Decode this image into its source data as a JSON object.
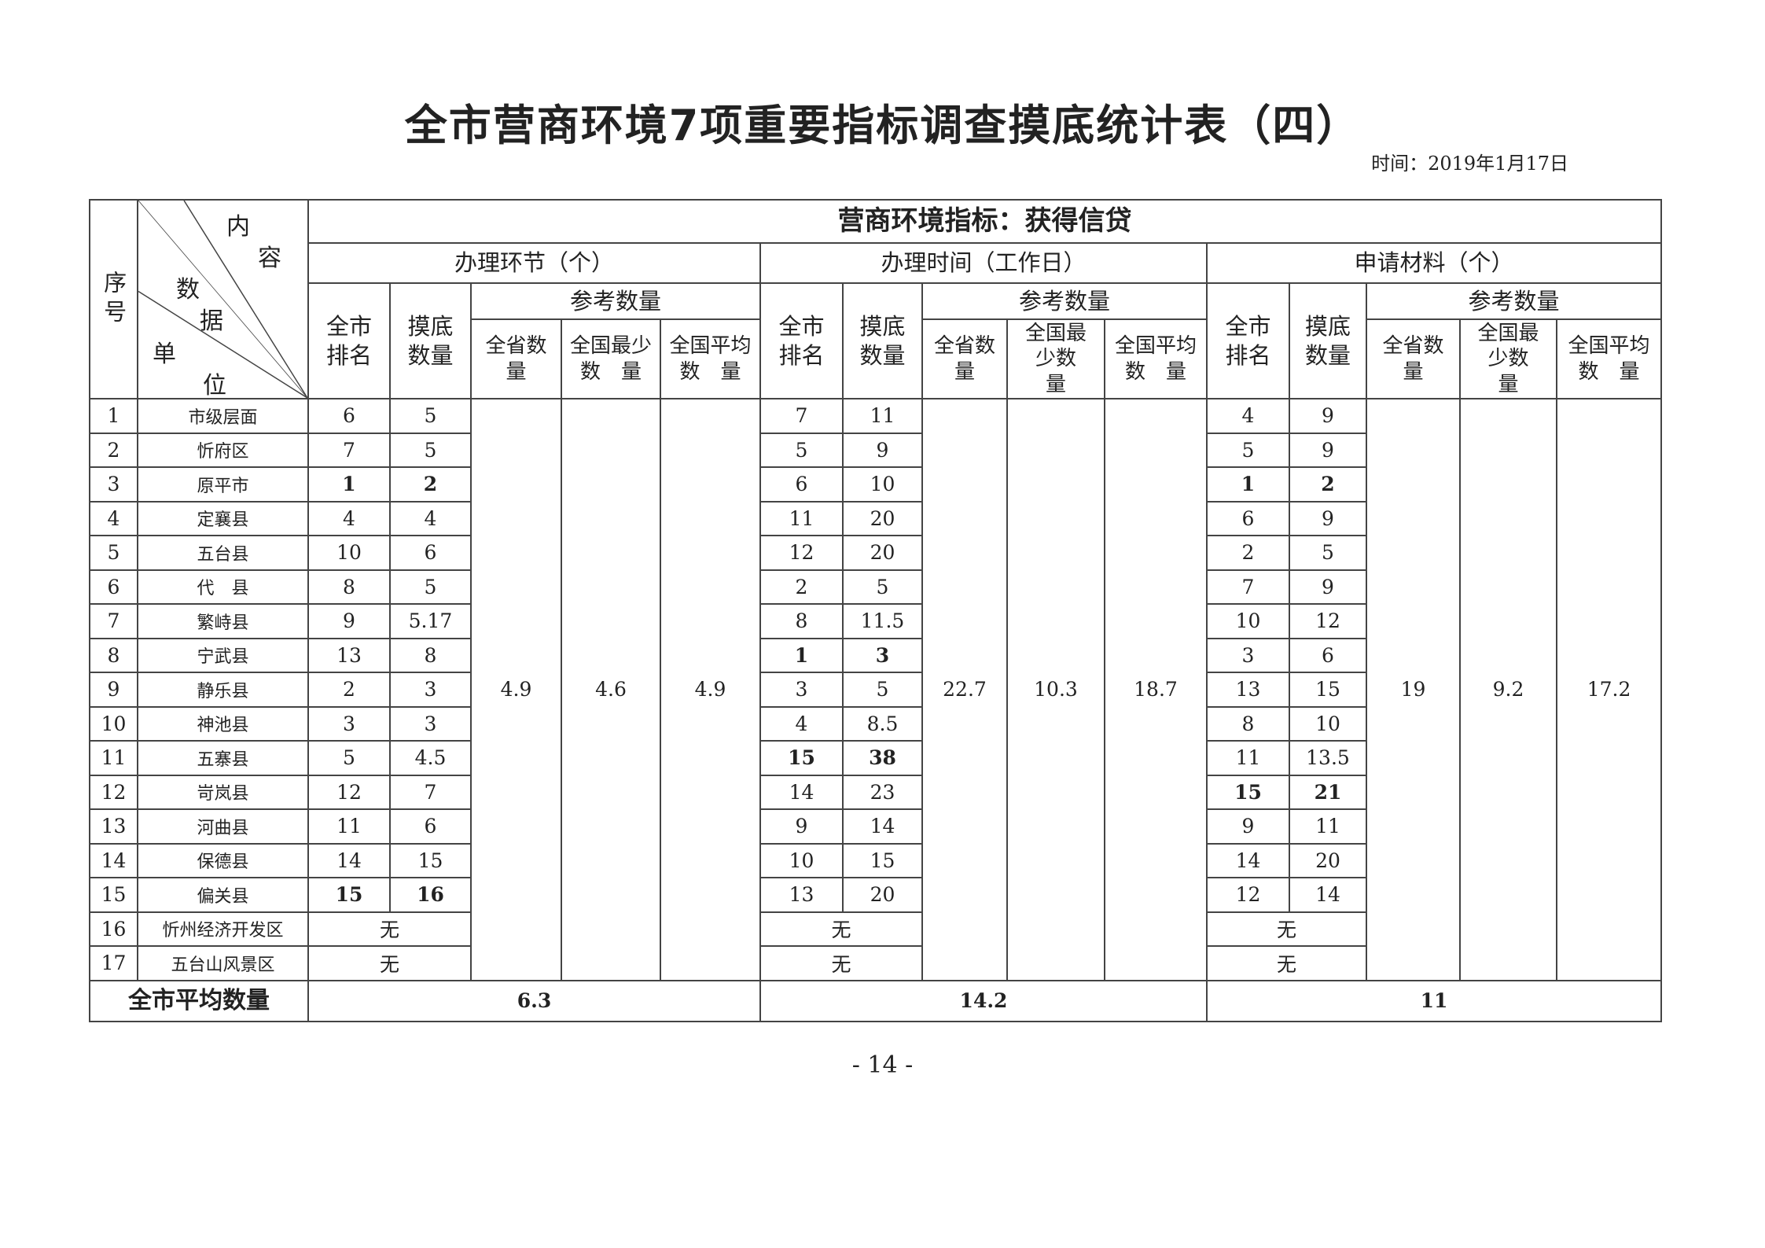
{
  "title": "全市营商环境7项重要指标调查摸底统计表（四）",
  "date": "时间：2019年1月17日",
  "header": {
    "seq": "序号",
    "diag_content": [
      "内",
      "容"
    ],
    "diag_data": [
      "数",
      "据"
    ],
    "diag_unit": [
      "单",
      "位"
    ],
    "indicator": "营商环境指标：获得信贷",
    "sections": [
      "办理环节（个）",
      "办理时间（工作日）",
      "申请材料（个）"
    ],
    "rank": "全市排名",
    "count": "摸底数量",
    "reference": "参考数量",
    "province": "全省数量",
    "national_min": "全国最少数　量",
    "national_avg": "全国平均数　量"
  },
  "reference_values": [
    {
      "province": "4.9",
      "national_min": "4.6",
      "national_avg": "4.9"
    },
    {
      "province": "22.7",
      "national_min": "10.3",
      "national_avg": "18.7"
    },
    {
      "province": "19",
      "national_min": "9.2",
      "national_avg": "17.2"
    }
  ],
  "rows": [
    {
      "no": "1",
      "name": "市级层面",
      "s": [
        [
          "6",
          "5"
        ],
        [
          "7",
          "11"
        ],
        [
          "4",
          "9"
        ]
      ]
    },
    {
      "no": "2",
      "name": "忻府区",
      "s": [
        [
          "7",
          "5"
        ],
        [
          "5",
          "9"
        ],
        [
          "5",
          "9"
        ]
      ]
    },
    {
      "no": "3",
      "name": "原平市",
      "s": [
        [
          "1",
          "2"
        ],
        [
          "6",
          "10"
        ],
        [
          "1",
          "2"
        ]
      ]
    },
    {
      "no": "4",
      "name": "定襄县",
      "s": [
        [
          "4",
          "4"
        ],
        [
          "11",
          "20"
        ],
        [
          "6",
          "9"
        ]
      ]
    },
    {
      "no": "5",
      "name": "五台县",
      "s": [
        [
          "10",
          "6"
        ],
        [
          "12",
          "20"
        ],
        [
          "2",
          "5"
        ]
      ]
    },
    {
      "no": "6",
      "name": "代　县",
      "s": [
        [
          "8",
          "5"
        ],
        [
          "2",
          "5"
        ],
        [
          "7",
          "9"
        ]
      ]
    },
    {
      "no": "7",
      "name": "繁峙县",
      "s": [
        [
          "9",
          "5.17"
        ],
        [
          "8",
          "11.5"
        ],
        [
          "10",
          "12"
        ]
      ]
    },
    {
      "no": "8",
      "name": "宁武县",
      "s": [
        [
          "13",
          "8"
        ],
        [
          "1",
          "3"
        ],
        [
          "3",
          "6"
        ]
      ]
    },
    {
      "no": "9",
      "name": "静乐县",
      "s": [
        [
          "2",
          "3"
        ],
        [
          "3",
          "5"
        ],
        [
          "13",
          "15"
        ]
      ]
    },
    {
      "no": "10",
      "name": "神池县",
      "s": [
        [
          "3",
          "3"
        ],
        [
          "4",
          "8.5"
        ],
        [
          "8",
          "10"
        ]
      ]
    },
    {
      "no": "11",
      "name": "五寨县",
      "s": [
        [
          "5",
          "4.5"
        ],
        [
          "15",
          "38"
        ],
        [
          "11",
          "13.5"
        ]
      ]
    },
    {
      "no": "12",
      "name": "岢岚县",
      "s": [
        [
          "12",
          "7"
        ],
        [
          "14",
          "23"
        ],
        [
          "15",
          "21"
        ]
      ]
    },
    {
      "no": "13",
      "name": "河曲县",
      "s": [
        [
          "11",
          "6"
        ],
        [
          "9",
          "14"
        ],
        [
          "9",
          "11"
        ]
      ]
    },
    {
      "no": "14",
      "name": "保德县",
      "s": [
        [
          "14",
          "15"
        ],
        [
          "10",
          "15"
        ],
        [
          "14",
          "20"
        ]
      ]
    },
    {
      "no": "15",
      "name": "偏关县",
      "s": [
        [
          "15",
          "16"
        ],
        [
          "13",
          "20"
        ],
        [
          "12",
          "14"
        ]
      ]
    },
    {
      "no": "16",
      "name": "忻州经济开发区",
      "s": [
        "无",
        "无",
        "无"
      ]
    },
    {
      "no": "17",
      "name": "五台山风景区",
      "s": [
        "无",
        "无",
        "无"
      ]
    }
  ],
  "total": {
    "label": "全市平均数量",
    "values": [
      "6.3",
      "14.2",
      "11"
    ]
  },
  "page_number": "- 14 -"
}
